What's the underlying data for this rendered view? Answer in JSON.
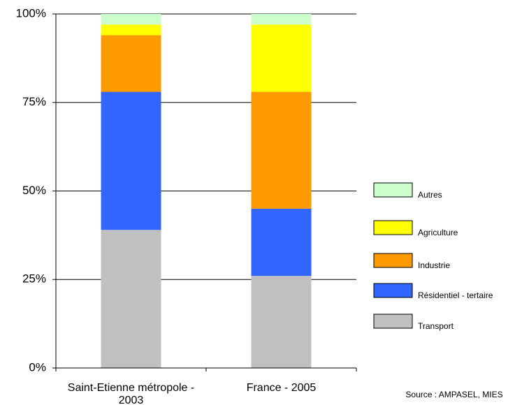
{
  "chart_data": {
    "type": "stacked_bar",
    "categories": [
      "Saint-Etienne métropole - 2003",
      "France - 2005"
    ],
    "series": [
      {
        "name": "Transport",
        "color": "#c0c0c0",
        "values": [
          39,
          26
        ]
      },
      {
        "name": "Résidentiel - tertaire",
        "color": "#3366ff",
        "values": [
          39,
          19
        ]
      },
      {
        "name": "Industrie",
        "color": "#ff9900",
        "values": [
          16,
          33
        ]
      },
      {
        "name": "Agriculture",
        "color": "#ffff00",
        "values": [
          3,
          19
        ]
      },
      {
        "name": "Autres",
        "color": "#ccffcc",
        "values": [
          3,
          3
        ]
      }
    ],
    "ylim": [
      0,
      100
    ],
    "yticks": [
      {
        "value": 0,
        "label": "0%"
      },
      {
        "value": 25,
        "label": "25%"
      },
      {
        "value": 50,
        "label": "50%"
      },
      {
        "value": 75,
        "label": "75%"
      },
      {
        "value": 100,
        "label": "100%"
      }
    ],
    "grid": true,
    "legend": "right",
    "annotations": [
      "Source : AMPASEL, MIES"
    ]
  }
}
